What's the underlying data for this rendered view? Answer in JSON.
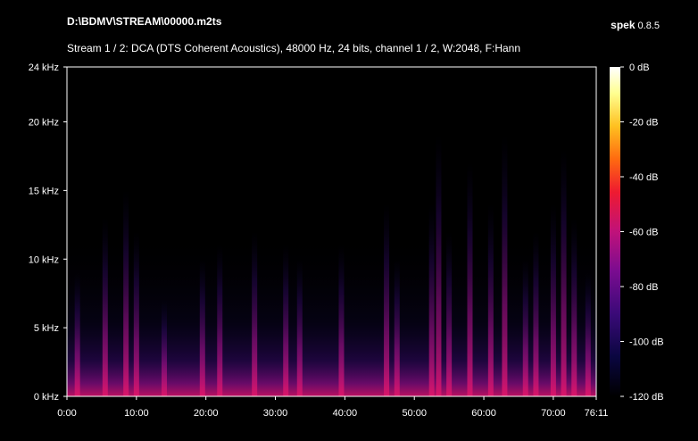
{
  "header": {
    "file_path": "D:\\BDMV\\STREAM\\00000.m2ts",
    "app_name": "spek",
    "app_version": "0.8.5",
    "stream_info": "Stream 1 / 2: DCA (DTS Coherent Acoustics), 48000 Hz, 24 bits, channel 1 / 2, W:2048, F:Hann"
  },
  "chart_data": {
    "type": "heatmap",
    "xlabel": "",
    "ylabel": "",
    "x_ticks": [
      "0:00",
      "10:00",
      "20:00",
      "30:00",
      "40:00",
      "50:00",
      "60:00",
      "70:00",
      "76:11"
    ],
    "x_tick_minutes": [
      0,
      10,
      20,
      30,
      40,
      50,
      60,
      70,
      76.18
    ],
    "x_range_minutes": [
      0,
      76.18
    ],
    "y_ticks": [
      "0 kHz",
      "5 kHz",
      "10 kHz",
      "15 kHz",
      "20 kHz",
      "24 kHz"
    ],
    "y_tick_khz": [
      0,
      5,
      10,
      15,
      20,
      24
    ],
    "y_range_khz": [
      0,
      24
    ],
    "colorbar_ticks": [
      "0 dB",
      "-20 dB",
      "-40 dB",
      "-60 dB",
      "-80 dB",
      "-100 dB",
      "-120 dB"
    ],
    "colorbar_db": [
      0,
      -20,
      -40,
      -60,
      -80,
      -100,
      -120
    ],
    "colorbar_range_db": [
      -120,
      0
    ],
    "colormap": [
      "#000000",
      "#0a0640",
      "#3a0a78",
      "#7a0c90",
      "#c0127a",
      "#ee1a30",
      "#ff6a10",
      "#ffc020",
      "#ffff90",
      "#ffffff"
    ],
    "grid": false,
    "bursts_minutes_khz": [
      [
        1.5,
        9
      ],
      [
        5.5,
        13
      ],
      [
        8.5,
        15
      ],
      [
        10.0,
        12
      ],
      [
        14.0,
        7
      ],
      [
        19.5,
        10
      ],
      [
        22.0,
        11
      ],
      [
        27.0,
        12
      ],
      [
        31.5,
        11
      ],
      [
        33.5,
        10
      ],
      [
        39.5,
        11
      ],
      [
        46.0,
        14
      ],
      [
        47.5,
        10
      ],
      [
        52.5,
        14
      ],
      [
        53.5,
        19
      ],
      [
        55.0,
        12
      ],
      [
        58.0,
        17
      ],
      [
        61.0,
        14
      ],
      [
        63.0,
        19
      ],
      [
        66.0,
        10
      ],
      [
        67.5,
        12
      ],
      [
        70.0,
        14
      ],
      [
        71.5,
        18
      ],
      [
        73.0,
        13
      ],
      [
        75.0,
        9
      ]
    ]
  }
}
